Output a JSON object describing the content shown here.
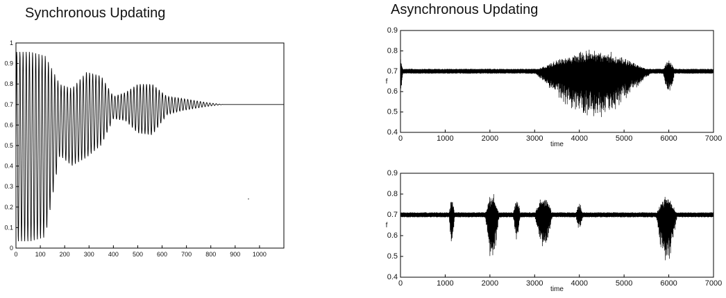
{
  "titles": {
    "sync": "Synchronous Updating",
    "async": "Asynchronous Updating"
  },
  "colors": {
    "trace": "#000000",
    "frame": "#000000"
  },
  "chart_data": [
    {
      "type": "line",
      "title": "Synchronous Updating",
      "xlabel": "",
      "ylabel": "",
      "xlim": [
        0,
        1100
      ],
      "ylim": [
        0,
        1
      ],
      "xticks": [
        0,
        100,
        200,
        300,
        400,
        500,
        600,
        700,
        800,
        900,
        1000
      ],
      "yticks": [
        0,
        0.1,
        0.2,
        0.3,
        0.4,
        0.5,
        0.6,
        0.7,
        0.8,
        0.9,
        1
      ],
      "ytick_labels": [
        "0",
        "0.1",
        "0.2",
        "0.3",
        "0.4",
        "0.5",
        "0.6",
        "0.7",
        "0.8",
        "0.9",
        "1"
      ],
      "grid": false,
      "series": [
        {
          "values_description_free": true,
          "equilibrium": 0.7,
          "envelope": {
            "x": [
              0,
              60,
              120,
              180,
              230,
              290,
              350,
              400,
              450,
              500,
              560,
              620,
              680,
              730,
              780,
              850,
              1100
            ],
            "upper": [
              0.96,
              0.96,
              0.94,
              0.8,
              0.78,
              0.86,
              0.84,
              0.74,
              0.76,
              0.8,
              0.8,
              0.74,
              0.73,
              0.72,
              0.71,
              0.7,
              0.7
            ],
            "lower": [
              0.03,
              0.03,
              0.05,
              0.45,
              0.4,
              0.44,
              0.5,
              0.63,
              0.62,
              0.56,
              0.55,
              0.65,
              0.67,
              0.68,
              0.69,
              0.7,
              0.7
            ]
          }
        }
      ]
    },
    {
      "type": "line",
      "title": "Asynchronous Updating",
      "xlabel": "time",
      "ylabel": "f",
      "xlim": [
        0,
        7000
      ],
      "ylim": [
        0.4,
        0.9
      ],
      "xticks": [
        0,
        1000,
        2000,
        3000,
        4000,
        5000,
        6000,
        7000
      ],
      "yticks": [
        0.4,
        0.5,
        0.6,
        0.7,
        0.8,
        0.9
      ],
      "ytick_labels": [
        "0.4",
        "0.5",
        "0.6",
        "0.7",
        "0.8",
        "0.9"
      ],
      "grid": false,
      "series": [
        {
          "equilibrium": 0.7,
          "noise": 0.012,
          "start_spike": {
            "x": 0,
            "max": 0.77,
            "min": 0.58
          },
          "bursts": [
            {
              "center": 4300,
              "halfwidth": 1400,
              "upper": 0.81,
              "lower": 0.46
            },
            {
              "center": 6000,
              "halfwidth": 150,
              "upper": 0.76,
              "lower": 0.58
            }
          ]
        }
      ]
    },
    {
      "type": "line",
      "title": "",
      "xlabel": "time",
      "ylabel": "f",
      "xlim": [
        0,
        7000
      ],
      "ylim": [
        0.4,
        0.9
      ],
      "xticks": [
        0,
        1000,
        2000,
        3000,
        4000,
        5000,
        6000,
        7000
      ],
      "yticks": [
        0.4,
        0.5,
        0.6,
        0.7,
        0.8,
        0.9
      ],
      "ytick_labels": [
        "0.4",
        "0.5",
        "0.6",
        "0.7",
        "0.8",
        "0.9"
      ],
      "grid": false,
      "series": [
        {
          "equilibrium": 0.7,
          "noise": 0.012,
          "bursts": [
            {
              "center": 1150,
              "halfwidth": 70,
              "upper": 0.79,
              "lower": 0.55
            },
            {
              "center": 2050,
              "halfwidth": 170,
              "upper": 0.81,
              "lower": 0.46
            },
            {
              "center": 2600,
              "halfwidth": 90,
              "upper": 0.79,
              "lower": 0.57
            },
            {
              "center": 3200,
              "halfwidth": 220,
              "upper": 0.8,
              "lower": 0.52
            },
            {
              "center": 4000,
              "halfwidth": 90,
              "upper": 0.76,
              "lower": 0.62
            },
            {
              "center": 5950,
              "halfwidth": 250,
              "upper": 0.8,
              "lower": 0.43
            }
          ]
        }
      ]
    }
  ]
}
